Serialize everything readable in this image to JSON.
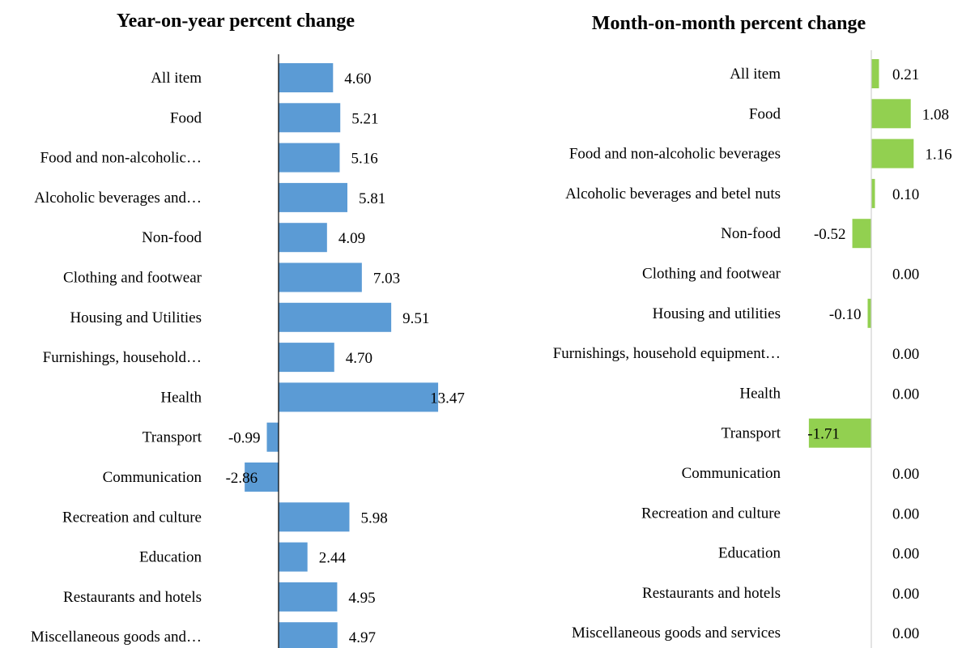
{
  "chart_data": [
    {
      "type": "bar",
      "orientation": "horizontal",
      "title": "Year-on-year percent change",
      "bar_color": "#5b9bd5",
      "categories": [
        "All item",
        "Food",
        "Food and non-alcoholic…",
        "Alcoholic beverages and…",
        "Non-food",
        "Clothing and footwear",
        "Housing and Utilities",
        "Furnishings, household…",
        "Health",
        "Transport",
        "Communication",
        "Recreation and culture",
        "Education",
        "Restaurants and hotels",
        "Miscellaneous goods and…"
      ],
      "values": [
        4.6,
        5.21,
        5.16,
        5.81,
        4.09,
        7.03,
        9.51,
        4.7,
        13.47,
        -0.99,
        -2.86,
        5.98,
        2.44,
        4.95,
        4.97
      ],
      "value_labels": [
        "4.60",
        "5.21",
        "5.16",
        "5.81",
        "4.09",
        "7.03",
        "9.51",
        "4.70",
        "13.47",
        "-0.99",
        "-2.86",
        "5.98",
        "2.44",
        "4.95",
        "4.97"
      ],
      "xlabel": "",
      "ylabel": ""
    },
    {
      "type": "bar",
      "orientation": "horizontal",
      "title": "Month-on-month percent change",
      "bar_color": "#92d050",
      "categories": [
        "All item",
        "Food",
        "Food and non-alcoholic beverages",
        "Alcoholic beverages and betel nuts",
        "Non-food",
        "Clothing and footwear",
        "Housing and utilities",
        "Furnishings, household equipment…",
        "Health",
        "Transport",
        "Communication",
        "Recreation and culture",
        "Education",
        "Restaurants and hotels",
        "Miscellaneous goods and services"
      ],
      "values": [
        0.21,
        1.08,
        1.16,
        0.1,
        -0.52,
        0.0,
        -0.1,
        0.0,
        0.0,
        -1.71,
        0.0,
        0.0,
        0.0,
        0.0,
        0.0
      ],
      "value_labels": [
        "0.21",
        "1.08",
        "1.16",
        "0.10",
        "-0.52",
        "0.00",
        "-0.10",
        "0.00",
        "0.00",
        "-1.71",
        "0.00",
        "0.00",
        "0.00",
        "0.00",
        "0.00"
      ],
      "xlabel": "",
      "ylabel": ""
    }
  ]
}
